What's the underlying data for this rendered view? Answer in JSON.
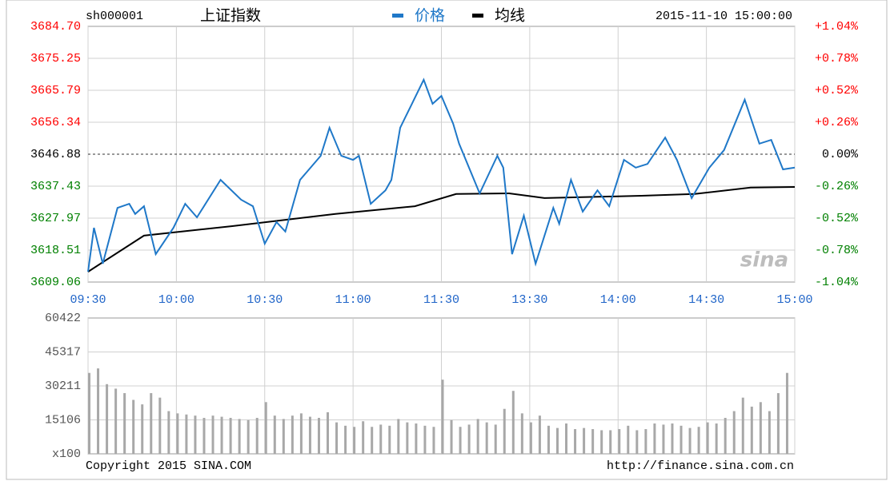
{
  "header": {
    "code": "sh000001",
    "name": "上证指数",
    "datetime": "2015-11-10 15:00:00"
  },
  "chart_data": [
    {
      "type": "line",
      "xlim": [
        0,
        240
      ],
      "xticks": [
        {
          "value": 0,
          "label": "09:30"
        },
        {
          "value": 30,
          "label": "10:00"
        },
        {
          "value": 60,
          "label": "10:30"
        },
        {
          "value": 90,
          "label": "11:00"
        },
        {
          "value": 120,
          "label": "11:30"
        },
        {
          "value": 150,
          "label": "13:30"
        },
        {
          "value": 180,
          "label": "14:00"
        },
        {
          "value": 210,
          "label": "14:30"
        },
        {
          "value": 240,
          "label": "15:00"
        }
      ],
      "ylim": [
        3609.06,
        3684.7
      ],
      "yticks": [
        {
          "value": 3684.7,
          "label": "3684.70"
        },
        3675.25,
        3665.79,
        3656.34,
        3646.88,
        3637.43,
        3627.97,
        3618.51,
        3609.06
      ],
      "y2lim": [
        -1.04,
        1.04
      ],
      "y2ticks": [
        {
          "value": 1.04,
          "label": "+1.04%"
        },
        {
          "value": 0.78,
          "label": "+0.78%"
        },
        {
          "value": 0.52,
          "label": "+0.52%"
        },
        {
          "value": 0.26,
          "label": "+0.26%"
        },
        {
          "value": 0,
          "label": "0.00%"
        },
        {
          "value": -0.26,
          "label": "-0.26%"
        },
        {
          "value": -0.52,
          "label": "-0.52%"
        },
        {
          "value": -0.78,
          "label": "-0.78%"
        },
        {
          "value": -1.04,
          "label": "-1.04%"
        }
      ],
      "label_colors": {
        "up": "#ff0000",
        "flat": "#000000",
        "down": "#008000"
      },
      "grid": true,
      "watermark": "sina",
      "series": [
        {
          "name": "价格",
          "color": "#1f78c8",
          "x": [
            0,
            2,
            5,
            10,
            14,
            16,
            19,
            23,
            29,
            33,
            37,
            45,
            52,
            56,
            60,
            64,
            67,
            72,
            79,
            82,
            86,
            90,
            92,
            96,
            101,
            103,
            106,
            110,
            114,
            117,
            120,
            124,
            126,
            133,
            139,
            141,
            144,
            148,
            152,
            158,
            160,
            164,
            168,
            173,
            177,
            182,
            186,
            190,
            196,
            200,
            205,
            211,
            216,
            223,
            228,
            232,
            236,
            240
          ],
          "values": [
            3612.1,
            3625.1,
            3614.5,
            3631.0,
            3632.2,
            3629.2,
            3631.5,
            3617.3,
            3625.1,
            3632.2,
            3628.2,
            3639.3,
            3633.4,
            3631.5,
            3620.4,
            3626.8,
            3624.0,
            3639.3,
            3646.4,
            3654.7,
            3646.4,
            3645.2,
            3646.4,
            3632.2,
            3636.2,
            3639.3,
            3654.7,
            3661.8,
            3668.9,
            3661.8,
            3664.1,
            3655.9,
            3650.0,
            3635.3,
            3646.4,
            3642.9,
            3617.3,
            3628.7,
            3614.5,
            3631.0,
            3626.3,
            3639.3,
            3629.9,
            3636.2,
            3631.5,
            3645.2,
            3642.9,
            3644.0,
            3651.8,
            3645.2,
            3633.9,
            3642.9,
            3648.1,
            3663.0,
            3650.0,
            3651.1,
            3642.4,
            3642.9
          ]
        },
        {
          "name": "均线",
          "color": "#000000",
          "x": [
            0,
            19,
            49,
            84,
            111,
            125,
            143,
            155,
            188,
            206,
            225,
            240
          ],
          "values": [
            3612.1,
            3622.8,
            3625.6,
            3629.2,
            3631.5,
            3635.1,
            3635.3,
            3633.9,
            3634.6,
            3635.1,
            3637.0,
            3637.2
          ]
        }
      ]
    },
    {
      "type": "bar",
      "xlim": [
        0,
        240
      ],
      "ylim": [
        0,
        60422
      ],
      "yticks": [
        15106,
        30211,
        45317,
        60422
      ],
      "y_unit_label": "x100",
      "color": "#a8a8a8",
      "x": [
        0,
        3,
        6,
        9,
        12,
        15,
        18,
        21,
        24,
        27,
        30,
        33,
        36,
        39,
        42,
        45,
        48,
        51,
        54,
        57,
        60,
        63,
        66,
        69,
        72,
        75,
        78,
        81,
        84,
        87,
        90,
        93,
        96,
        99,
        102,
        105,
        108,
        111,
        114,
        117,
        120,
        123,
        126,
        129,
        132,
        135,
        138,
        141,
        144,
        147,
        150,
        153,
        156,
        159,
        162,
        165,
        168,
        171,
        174,
        177,
        180,
        183,
        186,
        189,
        192,
        195,
        198,
        201,
        204,
        207,
        210,
        213,
        216,
        219,
        222,
        225,
        228,
        231,
        234,
        237
      ],
      "values": [
        36000,
        38000,
        31000,
        29000,
        27000,
        24000,
        22000,
        27000,
        25000,
        19000,
        18000,
        17500,
        17000,
        16000,
        17000,
        16500,
        16000,
        15500,
        15000,
        16000,
        23000,
        17000,
        15500,
        17000,
        18000,
        16500,
        16000,
        18500,
        14000,
        12500,
        12000,
        14500,
        12000,
        13000,
        12500,
        15500,
        14000,
        13500,
        12500,
        12000,
        33000,
        15000,
        12000,
        13000,
        15500,
        14000,
        13000,
        20000,
        28000,
        18000,
        14000,
        17000,
        12500,
        11500,
        13500,
        11000,
        11500,
        11000,
        10500,
        10500,
        11000,
        12500,
        10500,
        11000,
        13500,
        13000,
        13500,
        12500,
        11500,
        12000,
        14000,
        13500,
        16000,
        19000,
        25000,
        21000,
        23000,
        19000,
        27000,
        36000
      ]
    }
  ],
  "footer": {
    "copyright": "Copyright 2015 SINA.COM",
    "url": "http://finance.sina.com.cn"
  }
}
